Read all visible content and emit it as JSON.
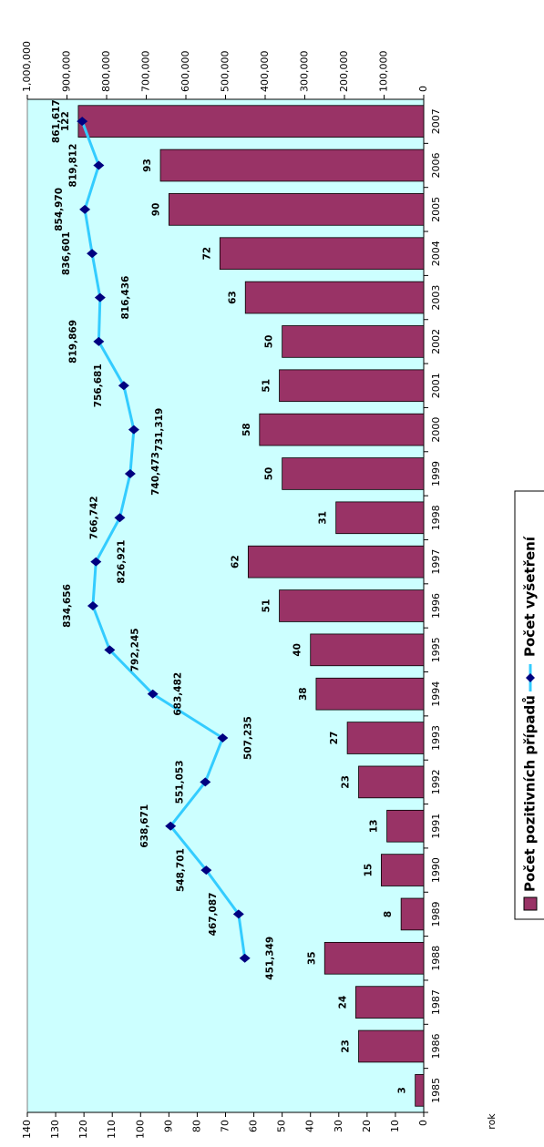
{
  "chart_data": {
    "type": "bar_line",
    "categories": [
      "1985",
      "1986",
      "1987",
      "1988",
      "1989",
      "1990",
      "1991",
      "1992",
      "1993",
      "1994",
      "1995",
      "1996",
      "1997",
      "1998",
      "1999",
      "2000",
      "2001",
      "2002",
      "2003",
      "2004",
      "2005",
      "2006",
      "2007"
    ],
    "x_label": "rok",
    "series": [
      {
        "name": "Počet pozitivních případů",
        "type": "bar",
        "color": "#993366",
        "values": [
          3,
          23,
          24,
          35,
          8,
          15,
          13,
          23,
          27,
          38,
          40,
          51,
          62,
          31,
          50,
          58,
          51,
          50,
          63,
          72,
          90,
          93,
          122
        ]
      },
      {
        "name": "Počet vyšetření",
        "type": "line",
        "axis": "y2",
        "color": "#33ccff",
        "marker_color": "#000080",
        "values": [
          null,
          null,
          null,
          451349,
          467087,
          548701,
          638671,
          551053,
          507235,
          683482,
          792245,
          834656,
          826921,
          766742,
          740473,
          731319,
          756681,
          819869,
          816436,
          836601,
          854970,
          819812,
          861617
        ],
        "value_labels": [
          null,
          null,
          null,
          "451,349",
          "467,087",
          "548,701",
          "638,671",
          "551,053",
          "507,235",
          "683,482",
          "792,245",
          "834,656",
          "826,921",
          "766,742",
          "740,473",
          "731,319",
          "756,681",
          "819,869",
          "816,436",
          "836,601",
          "854,970",
          "819,812",
          "861,617"
        ]
      }
    ],
    "ylim": [
      0,
      140
    ],
    "yticks": [
      0,
      10,
      20,
      30,
      40,
      50,
      60,
      70,
      80,
      90,
      100,
      110,
      120,
      130,
      140
    ],
    "y2lim": [
      0,
      1000000
    ],
    "y2ticks": [
      0,
      {
        "value": 100000,
        "label": "100,000"
      },
      {
        "value": 200000,
        "label": "200,000"
      },
      {
        "value": 300000,
        "label": "300,000"
      },
      {
        "value": 400000,
        "label": "400,000"
      },
      {
        "value": 500000,
        "label": "500,000"
      },
      {
        "value": 600000,
        "label": "600,000"
      },
      {
        "value": 700000,
        "label": "700,000"
      },
      {
        "value": 800000,
        "label": "800,000"
      },
      {
        "value": 900000,
        "label": "900,000"
      },
      {
        "value": 1000000,
        "label": "1,000,000"
      }
    ],
    "background": "#ccffff"
  }
}
